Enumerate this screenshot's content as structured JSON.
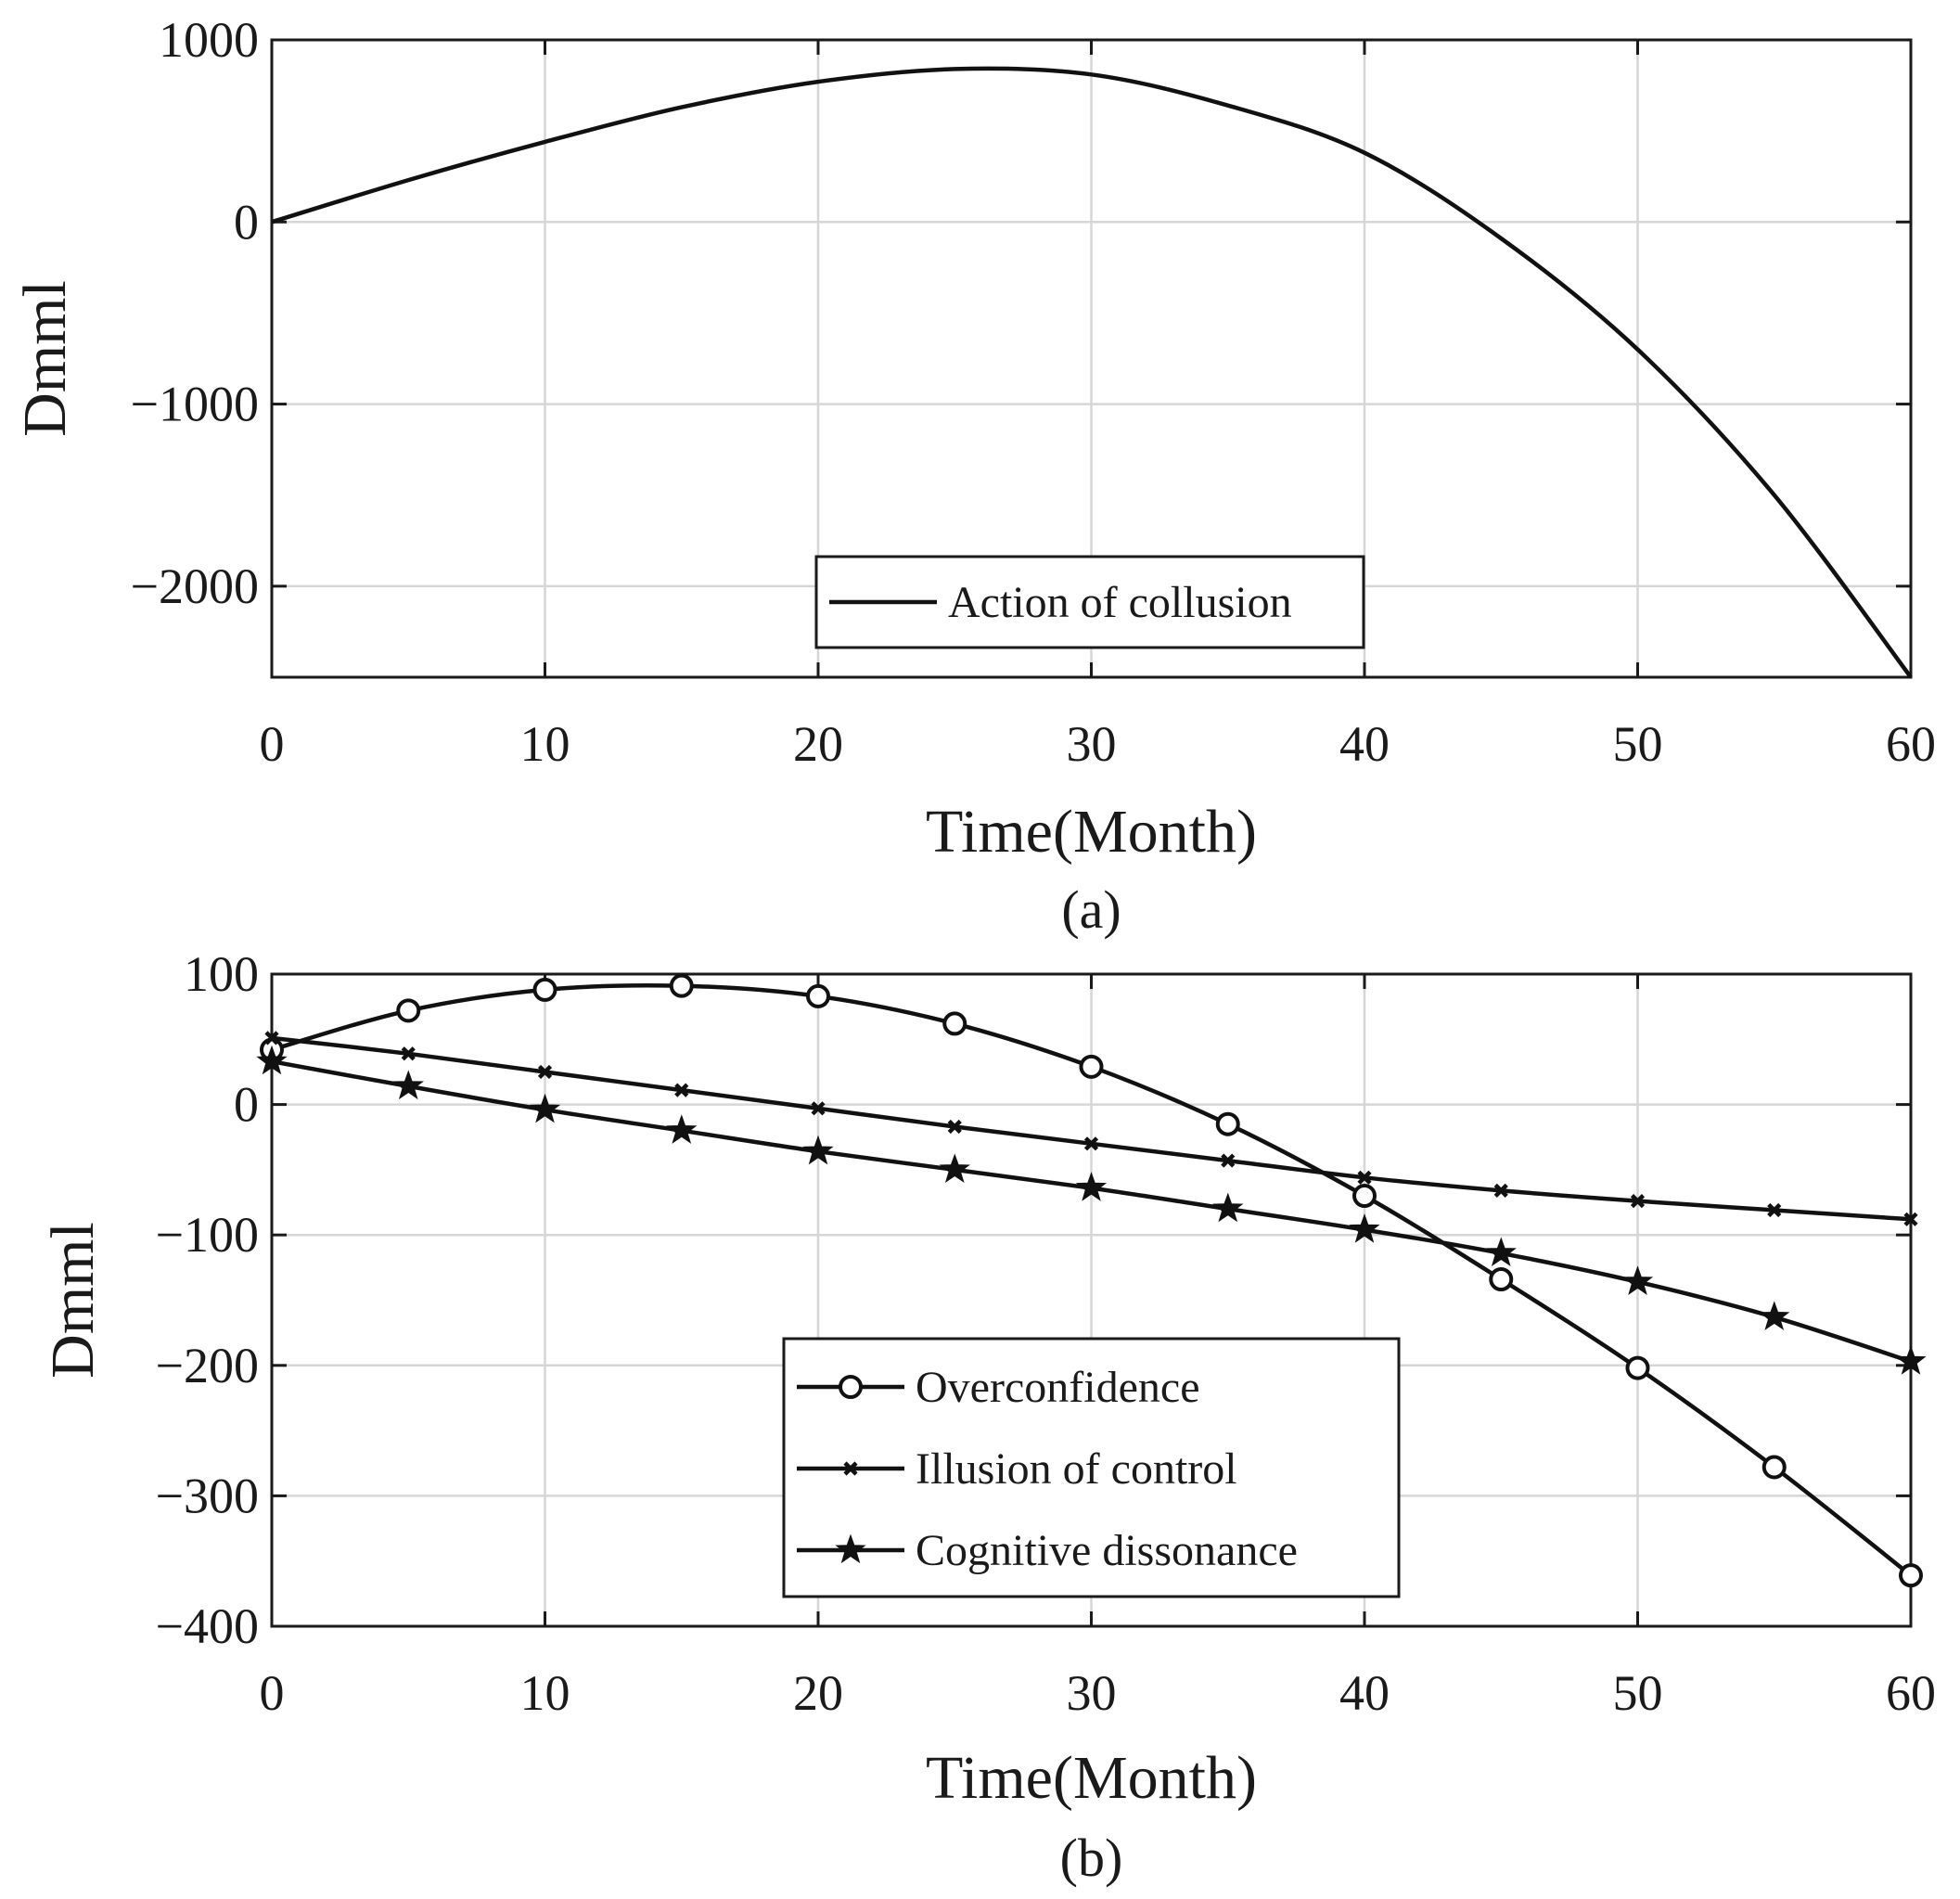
{
  "chart_data": [
    {
      "id": "a",
      "type": "line",
      "caption": "(a)",
      "xlabel": "Time(Month)",
      "ylabel": "Dmml",
      "xlim": [
        0,
        60
      ],
      "ylim": [
        -2500,
        1000
      ],
      "xticks": [
        0,
        10,
        20,
        30,
        40,
        50,
        60
      ],
      "yticks": [
        1000,
        0,
        -1000,
        -2000
      ],
      "ytick_labels": [
        "1000",
        "0",
        "−1000",
        "−2000"
      ],
      "grid": true,
      "legend_position": "bottom-center",
      "series": [
        {
          "name": "Action of collusion",
          "marker": "none",
          "x": [
            0,
            5,
            10,
            15,
            20,
            25,
            30,
            35,
            40,
            45,
            50,
            55,
            60
          ],
          "y": [
            0,
            230,
            440,
            630,
            770,
            840,
            810,
            640,
            380,
            -90,
            -700,
            -1500,
            -2500
          ]
        }
      ]
    },
    {
      "id": "b",
      "type": "line",
      "caption": "(b)",
      "xlabel": "Time(Month)",
      "ylabel": "Dmml",
      "xlim": [
        0,
        60
      ],
      "ylim": [
        -400,
        100
      ],
      "xticks": [
        0,
        10,
        20,
        30,
        40,
        50,
        60
      ],
      "yticks": [
        100,
        0,
        -100,
        -200,
        -300,
        -400
      ],
      "ytick_labels": [
        "100",
        "0",
        "−100",
        "−200",
        "−300",
        "−400"
      ],
      "grid": true,
      "legend_position": "lower-center",
      "series": [
        {
          "name": "Overconfidence",
          "marker": "circle",
          "x": [
            0,
            5,
            10,
            15,
            20,
            25,
            30,
            35,
            40,
            45,
            50,
            55,
            60
          ],
          "y": [
            42,
            72,
            88,
            91,
            83,
            62,
            29,
            -15,
            -70,
            -134,
            -202,
            -278,
            -361
          ]
        },
        {
          "name": "Illusion of control",
          "marker": "x",
          "x": [
            0,
            5,
            10,
            15,
            20,
            25,
            30,
            35,
            40,
            45,
            50,
            55,
            60
          ],
          "y": [
            51,
            39,
            25,
            11,
            -3,
            -17,
            -30,
            -43,
            -56,
            -66,
            -74,
            -81,
            -88
          ]
        },
        {
          "name": "Cognitive dissonance",
          "marker": "star",
          "x": [
            0,
            5,
            10,
            15,
            20,
            25,
            30,
            35,
            40,
            45,
            50,
            55,
            60
          ],
          "y": [
            33,
            14,
            -4,
            -20,
            -36,
            -50,
            -64,
            -80,
            -96,
            -114,
            -136,
            -163,
            -197
          ]
        }
      ]
    }
  ]
}
